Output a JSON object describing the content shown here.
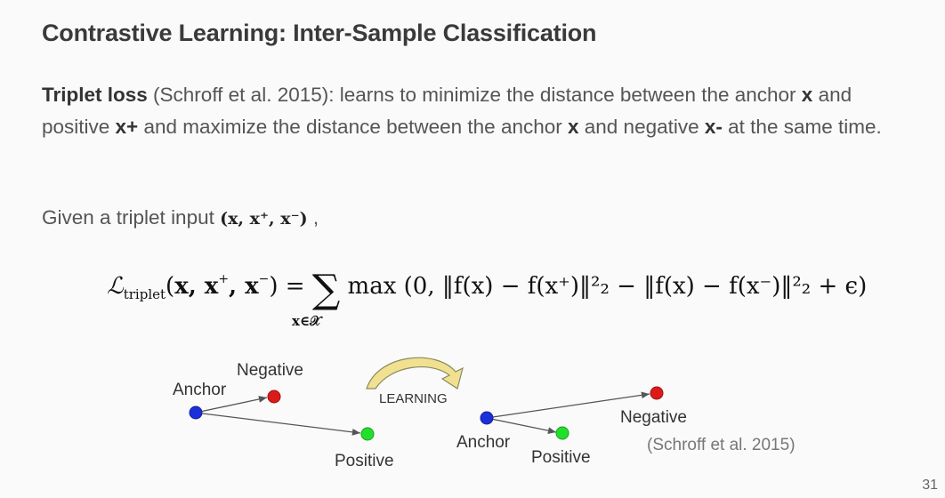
{
  "title": "Contrastive Learning: Inter-Sample Classification",
  "paragraph": {
    "term": "Triplet loss",
    "p1": " (Schroff et al. 2015): learns to minimize the distance between the anchor ",
    "x1": "x",
    "p2": " and positive ",
    "xpos": "x+",
    "p3": " and maximize the distance between the anchor ",
    "x2": "x",
    "p4": " and negative ",
    "xneg": "x-",
    "p5": " at the same time."
  },
  "given": {
    "text": "Given a triplet input ",
    "math": "(x, x⁺, x⁻)",
    "tail": " ,"
  },
  "formula": {
    "L": "ℒ",
    "sub": "triplet",
    "args_open": "(",
    "args_x": "x, x",
    "args_sup1": "+",
    "args_mid": ", x",
    "args_sup2": "−",
    "args_close": ") = ",
    "sum": "∑",
    "max_part": " max ",
    "body": "(0, ‖f(x) − f(x⁺)‖²₂ − ‖f(x) − f(x⁻)‖²₂ + ϵ)",
    "sum_below": "x∈𝒳"
  },
  "diagram": {
    "left": {
      "anchor": "Anchor",
      "negative": "Negative",
      "positive": "Positive"
    },
    "learning": "LEARNING",
    "right": {
      "anchor": "Anchor",
      "negative": "Negative",
      "positive": "Positive"
    },
    "colors": {
      "anchor": "#1a2fd8",
      "negative": "#dd1a1a",
      "positive": "#22e02a",
      "arrow": "#e2d27a"
    }
  },
  "citation": "(Schroff et al. 2015)",
  "page_number": "31"
}
